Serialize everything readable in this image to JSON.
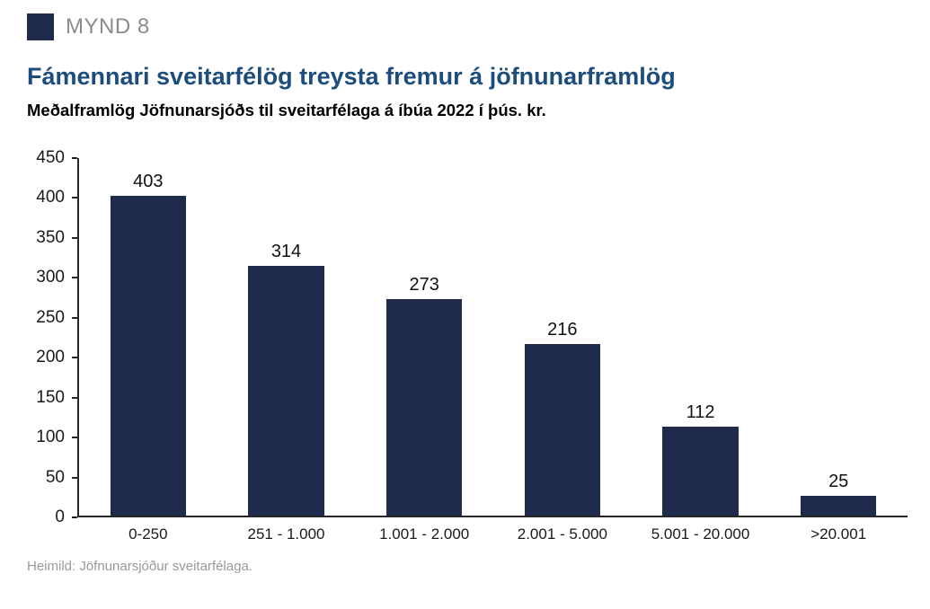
{
  "header": {
    "figure_label": "MYND 8",
    "title": "Fámennari sveitarfélög treysta fremur á jöfnunarframlög",
    "subtitle": "Meðalframlög Jöfnunarsjóðs til sveitarfélaga á íbúa 2022 í þús. kr."
  },
  "footer": {
    "source": "Heimild: Jöfnunarsjóður sveitarfélaga."
  },
  "colors": {
    "bar": "#1f2a4c",
    "title": "#1c4d7c",
    "accent_square": "#1f2a4c",
    "muted_text": "#9a9a9a",
    "axis": "#262626"
  },
  "chart_data": {
    "type": "bar",
    "categories": [
      "0-250",
      "251 - 1.000",
      "1.001 - 2.000",
      "2.001 - 5.000",
      "5.001 - 20.000",
      ">20.001"
    ],
    "values": [
      403,
      314,
      273,
      216,
      112,
      25
    ],
    "title": "Fámennari sveitarfélög treysta fremur á jöfnunarframlög",
    "subtitle": "Meðalframlög Jöfnunarsjóðs til sveitarfélaga á íbúa 2022 í þús. kr.",
    "xlabel": "",
    "ylabel": "",
    "ylim": [
      0,
      450
    ],
    "ytick_step": 50,
    "grid": false,
    "legend": false,
    "bar_labels": true
  }
}
